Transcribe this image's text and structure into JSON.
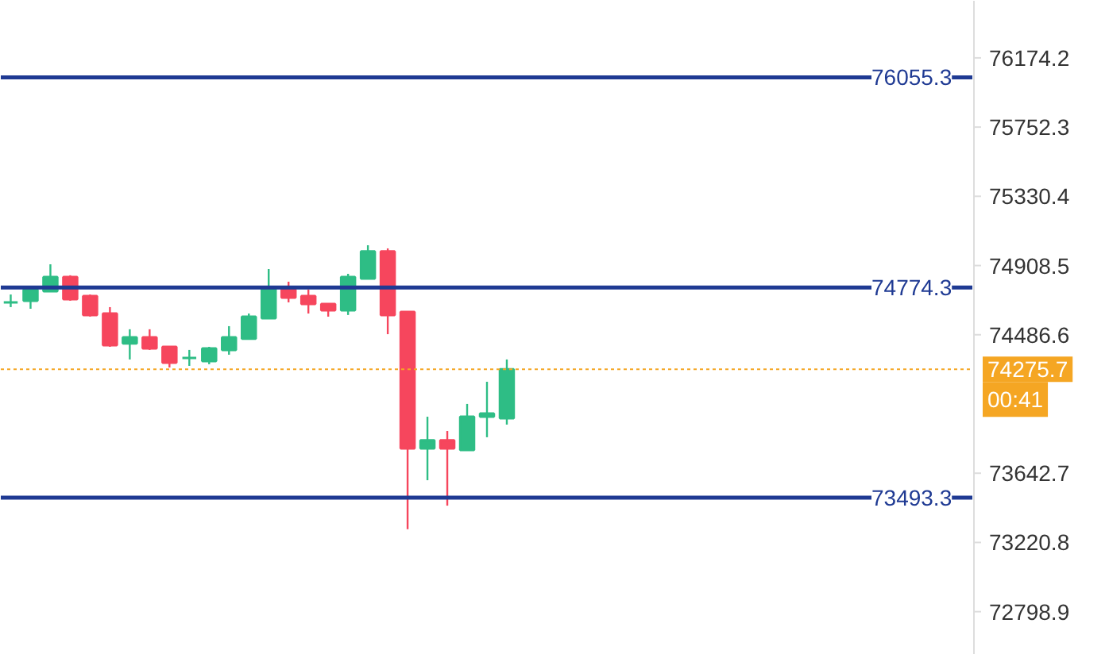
{
  "chart_data": {
    "type": "candlestick",
    "categories": [
      null,
      null,
      null,
      null,
      null,
      null,
      null,
      null,
      null,
      null,
      null,
      null,
      null,
      null,
      null,
      null,
      null,
      null,
      null,
      null,
      null,
      null,
      null,
      null,
      null,
      null,
      null,
      null,
      null,
      null,
      null,
      null,
      null,
      null,
      null,
      null,
      null,
      null,
      null,
      null,
      null,
      null,
      null,
      null,
      null,
      null,
      null,
      null,
      null
    ],
    "tick_labels": "y",
    "ohlc": [
      [
        74684,
        74732,
        74655,
        74684
      ],
      [
        74694,
        74762,
        74645,
        74762
      ],
      [
        74752,
        74916,
        74752,
        74839
      ],
      [
        74839,
        74849,
        74694,
        74703
      ],
      [
        74723,
        74732,
        74597,
        74607
      ],
      [
        74616,
        74655,
        74413,
        74423
      ],
      [
        74433,
        74520,
        74336,
        74471
      ],
      [
        74471,
        74520,
        74394,
        74403
      ],
      [
        74413,
        74413,
        74287,
        74316
      ],
      [
        74345,
        74394,
        74297,
        74345
      ],
      [
        74326,
        74413,
        74307,
        74403
      ],
      [
        74394,
        74539,
        74365,
        74471
      ],
      [
        74462,
        74616,
        74462,
        74597
      ],
      [
        74587,
        74887,
        74587,
        74771
      ],
      [
        74762,
        74810,
        74684,
        74713
      ],
      [
        74723,
        74762,
        74616,
        74674
      ],
      [
        74674,
        74674,
        74597,
        74636
      ],
      [
        74636,
        74858,
        74607,
        74839
      ],
      [
        74829,
        75032,
        74829,
        74994
      ],
      [
        74994,
        75013,
        74490,
        74607
      ],
      [
        74626,
        74626,
        73301,
        73794
      ],
      [
        73794,
        73987,
        73600,
        73843
      ],
      [
        73843,
        73900,
        73445,
        73794
      ],
      [
        73784,
        74065,
        73784,
        73987
      ],
      [
        73987,
        74200,
        73862,
        74007
      ],
      [
        73978,
        74336,
        73939,
        74276
      ],
      null,
      null,
      null,
      null,
      null,
      null,
      null,
      null,
      null,
      null,
      null,
      null,
      null,
      null,
      null,
      null,
      null,
      null,
      null,
      null,
      null,
      null,
      null
    ],
    "colors": [
      "#2ebd85",
      "#2ebd85",
      "#2ebd85",
      "#f6465d",
      "#f6465d",
      "#f6465d",
      "#2ebd85",
      "#f6465d",
      "#f6465d",
      "#2ebd85",
      "#2ebd85",
      "#2ebd85",
      "#2ebd85",
      "#2ebd85",
      "#f6465d",
      "#f6465d",
      "#f6465d",
      "#2ebd85",
      "#2ebd85",
      "#f6465d",
      "#f6465d",
      "#2ebd85",
      "#f6465d",
      "#2ebd85",
      "#2ebd85",
      "#2ebd85",
      null,
      null,
      null,
      null,
      null,
      null,
      null,
      null,
      null,
      null,
      null,
      null,
      null,
      null,
      null,
      null,
      null,
      null,
      null,
      null,
      null,
      null,
      null
    ],
    "ylim": [
      72536,
      76522
    ],
    "yticks": [
      76174.2,
      75752.3,
      75330.4,
      74908.5,
      74486.6,
      73642.7,
      73220.8,
      72798.9
    ],
    "ref_lines": [
      {
        "axis": "y",
        "value": 76055.3,
        "label": "76055.3",
        "color": "#1f3a93",
        "line_style": "solid"
      },
      {
        "axis": "y",
        "value": 74774.3,
        "label": "74774.3",
        "color": "#1f3a93",
        "line_style": "solid"
      },
      {
        "axis": "y",
        "value": 73493.3,
        "label": "73493.3",
        "color": "#1f3a93",
        "line_style": "solid"
      },
      {
        "axis": "y",
        "value": 74275.7,
        "label": "74275.7",
        "color": "#f5a623",
        "line_style": "dotted"
      }
    ],
    "annotations": [
      "00:41"
    ],
    "grid": false
  }
}
